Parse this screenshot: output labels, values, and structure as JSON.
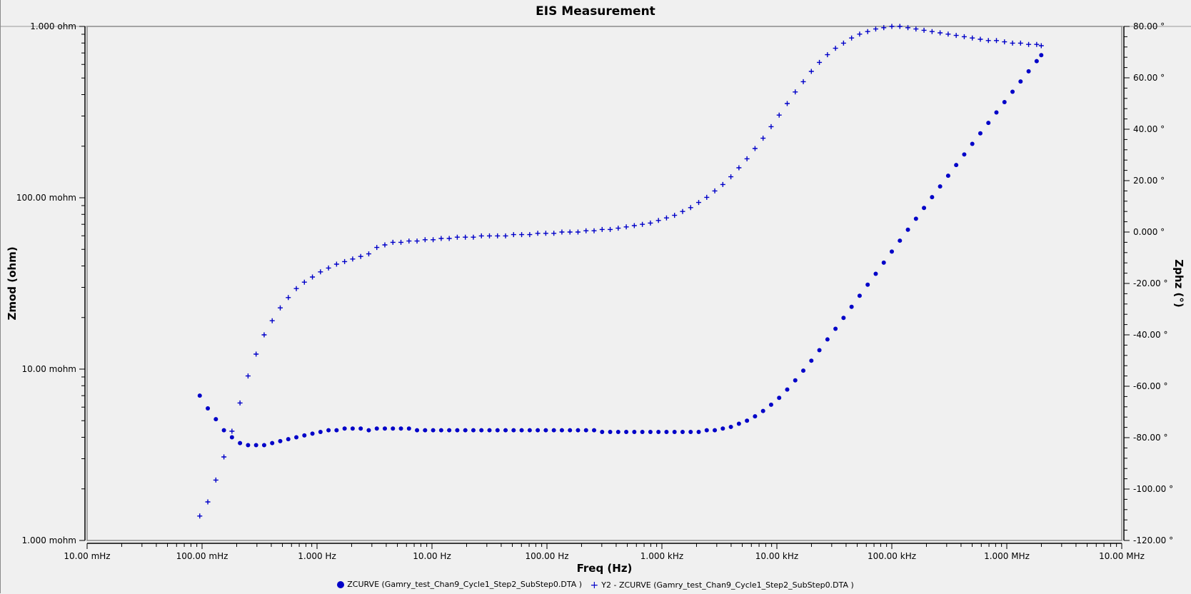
{
  "chart_data": {
    "type": "scatter",
    "title": "EIS Measurement",
    "xlabel": "Freq (Hz)",
    "ylabel": "Zmod (ohm)",
    "y2label": "Zphz (°)",
    "xscale": "log",
    "yscale": "log",
    "xlim": [
      0.01,
      10000000
    ],
    "ylim": [
      0.001,
      1
    ],
    "y2lim": [
      -120,
      80
    ],
    "x_tick_labels": [
      "10.00 mHz",
      "100.00 mHz",
      "1.000 Hz",
      "10.00 Hz",
      "100.00 Hz",
      "1.000 kHz",
      "10.00 kHz",
      "100.00 kHz",
      "1.000 MHz",
      "10.00 MHz"
    ],
    "y_tick_labels": [
      "1.000 ohm",
      "100.00 mohm",
      "10.00 mohm",
      "1.000 mohm"
    ],
    "y2_tick_labels": [
      "80.00 °",
      "60.00 °",
      "40.00 °",
      "20.00 °",
      "0.000 °",
      "-20.00 °",
      "-40.00 °",
      "-60.00 °",
      "-80.00 °",
      "-100.00 °",
      "-120.00 °"
    ],
    "grid": false,
    "legend_position": "bottom",
    "series": [
      {
        "name": "ZCURVE (Gamry_test_Chan9_Cycle1_Step2_SubStep0.DTA )",
        "marker": "dot",
        "axis": "left",
        "color": "#0000c8",
        "log_freq": [
          -1.02,
          -0.95,
          -0.88,
          -0.81,
          -0.74,
          -0.67,
          -0.6,
          -0.53,
          -0.46,
          -0.39,
          -0.32,
          -0.25,
          -0.18,
          -0.11,
          -0.04,
          0.03,
          0.1,
          0.17,
          0.24,
          0.31,
          0.38,
          0.45,
          0.52,
          0.59,
          0.66,
          0.73,
          0.8,
          0.87,
          0.94,
          1.01,
          1.08,
          1.15,
          1.22,
          1.29,
          1.36,
          1.43,
          1.5,
          1.57,
          1.64,
          1.71,
          1.78,
          1.85,
          1.92,
          1.99,
          2.06,
          2.13,
          2.2,
          2.27,
          2.34,
          2.41,
          2.48,
          2.55,
          2.62,
          2.69,
          2.76,
          2.83,
          2.9,
          2.97,
          3.04,
          3.11,
          3.18,
          3.25,
          3.32,
          3.39,
          3.46,
          3.53,
          3.6,
          3.67,
          3.74,
          3.81,
          3.88,
          3.95,
          4.02,
          4.09,
          4.16,
          4.23,
          4.3,
          4.37,
          4.44,
          4.51,
          4.58,
          4.65,
          4.72,
          4.79,
          4.86,
          4.93,
          5.0,
          5.07,
          5.14,
          5.21,
          5.28,
          5.35,
          5.42,
          5.49,
          5.56,
          5.63,
          5.7,
          5.77,
          5.84,
          5.91,
          5.98,
          6.05,
          6.12,
          6.19,
          6.26,
          6.3
        ],
        "zmod_ohm": [
          0.007,
          0.0059,
          0.0051,
          0.0044,
          0.004,
          0.0037,
          0.0036,
          0.0036,
          0.0036,
          0.0037,
          0.0038,
          0.0039,
          0.004,
          0.0041,
          0.0042,
          0.0043,
          0.0044,
          0.0044,
          0.0045,
          0.0045,
          0.0045,
          0.0044,
          0.0045,
          0.0045,
          0.0045,
          0.0045,
          0.0045,
          0.0044,
          0.0044,
          0.0044,
          0.0044,
          0.0044,
          0.0044,
          0.0044,
          0.0044,
          0.0044,
          0.0044,
          0.0044,
          0.0044,
          0.0044,
          0.0044,
          0.0044,
          0.0044,
          0.0044,
          0.0044,
          0.0044,
          0.0044,
          0.0044,
          0.0044,
          0.0044,
          0.0043,
          0.0043,
          0.0043,
          0.0043,
          0.0043,
          0.0043,
          0.0043,
          0.0043,
          0.0043,
          0.0043,
          0.0043,
          0.0043,
          0.0043,
          0.0044,
          0.0044,
          0.0045,
          0.0046,
          0.0048,
          0.005,
          0.0053,
          0.0057,
          0.0062,
          0.0068,
          0.0076,
          0.0086,
          0.0098,
          0.0112,
          0.0129,
          0.0149,
          0.0172,
          0.0199,
          0.0231,
          0.0268,
          0.0311,
          0.036,
          0.0418,
          0.0485,
          0.0562,
          0.0651,
          0.0754,
          0.0872,
          0.1008,
          0.1165,
          0.1345,
          0.1552,
          0.179,
          0.2063,
          0.2376,
          0.2735,
          0.3146,
          0.3617,
          0.4155,
          0.477,
          0.5473,
          0.6275,
          0.68
        ]
      },
      {
        "name": "Y2 - ZCURVE (Gamry_test_Chan9_Cycle1_Step2_SubStep0.DTA )",
        "marker": "plus",
        "axis": "right",
        "color": "#0000c8",
        "log_freq": [
          -1.02,
          -0.95,
          -0.88,
          -0.81,
          -0.74,
          -0.67,
          -0.6,
          -0.53,
          -0.46,
          -0.39,
          -0.32,
          -0.25,
          -0.18,
          -0.11,
          -0.04,
          0.03,
          0.1,
          0.17,
          0.24,
          0.31,
          0.38,
          0.45,
          0.52,
          0.59,
          0.66,
          0.73,
          0.8,
          0.87,
          0.94,
          1.01,
          1.08,
          1.15,
          1.22,
          1.29,
          1.36,
          1.43,
          1.5,
          1.57,
          1.64,
          1.71,
          1.78,
          1.85,
          1.92,
          1.99,
          2.06,
          2.13,
          2.2,
          2.27,
          2.34,
          2.41,
          2.48,
          2.55,
          2.62,
          2.69,
          2.76,
          2.83,
          2.9,
          2.97,
          3.04,
          3.11,
          3.18,
          3.25,
          3.32,
          3.39,
          3.46,
          3.53,
          3.6,
          3.67,
          3.74,
          3.81,
          3.88,
          3.95,
          4.02,
          4.09,
          4.16,
          4.23,
          4.3,
          4.37,
          4.44,
          4.51,
          4.58,
          4.65,
          4.72,
          4.79,
          4.86,
          4.93,
          5.0,
          5.07,
          5.14,
          5.21,
          5.28,
          5.35,
          5.42,
          5.49,
          5.56,
          5.63,
          5.7,
          5.77,
          5.84,
          5.91,
          5.98,
          6.05,
          6.12,
          6.19,
          6.26,
          6.3
        ],
        "phase_deg": [
          -110.5,
          -105.0,
          -96.5,
          -87.5,
          -77.5,
          -66.5,
          -56.0,
          -47.5,
          -40.0,
          -34.5,
          -29.5,
          -25.5,
          -22.0,
          -19.5,
          -17.5,
          -15.5,
          -14.0,
          -12.5,
          -11.5,
          -10.5,
          -9.5,
          -8.5,
          -6.0,
          -5.0,
          -4.0,
          -4.0,
          -3.5,
          -3.5,
          -3.0,
          -3.0,
          -2.5,
          -2.5,
          -2.0,
          -2.0,
          -2.0,
          -1.5,
          -1.5,
          -1.5,
          -1.5,
          -1.0,
          -1.0,
          -1.0,
          -0.5,
          -0.5,
          -0.5,
          0.0,
          0.0,
          0.0,
          0.5,
          0.5,
          1.0,
          1.0,
          1.5,
          2.0,
          2.5,
          3.0,
          3.5,
          4.5,
          5.5,
          6.5,
          8.0,
          9.5,
          11.5,
          13.5,
          16.0,
          18.5,
          21.5,
          25.0,
          28.5,
          32.5,
          36.5,
          41.0,
          45.5,
          50.0,
          54.5,
          58.5,
          62.5,
          66.0,
          69.0,
          71.5,
          73.5,
          75.5,
          77.0,
          78.0,
          79.0,
          79.5,
          80.0,
          80.0,
          79.5,
          79.0,
          78.5,
          78.0,
          77.5,
          77.0,
          76.5,
          76.0,
          75.5,
          75.0,
          74.5,
          74.5,
          74.0,
          73.5,
          73.5,
          73.0,
          73.0,
          72.5
        ]
      }
    ]
  },
  "legend": {
    "items": [
      {
        "label": "ZCURVE (Gamry_test_Chan9_Cycle1_Step2_SubStep0.DTA )"
      },
      {
        "label": "Y2 - ZCURVE (Gamry_test_Chan9_Cycle1_Step2_SubStep0.DTA )"
      }
    ]
  }
}
